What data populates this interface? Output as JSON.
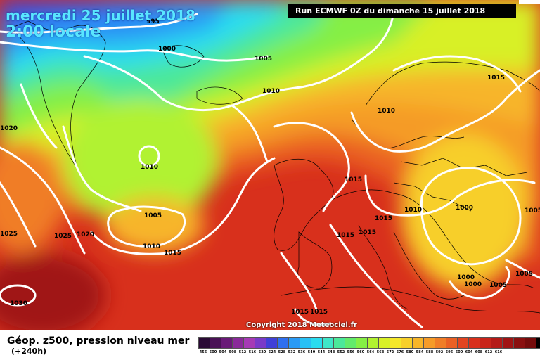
{
  "header": {
    "date": "mercredi 25 juillet 2018",
    "time": "2:00 locale",
    "run": "Run ECMWF 0Z du dimanche 15 juillet 2018"
  },
  "copyright": "Copyright 2018 Meteociel.fr",
  "legend": {
    "title": "Géop. z500, pression niveau mer",
    "subtitle": "(+240h)",
    "colors": [
      "#2a0a35",
      "#4a1256",
      "#6a1a78",
      "#8a2a9a",
      "#a63ab5",
      "#7a3ac8",
      "#4040d8",
      "#2f6ff0",
      "#2a9af5",
      "#28c0f5",
      "#2adcef",
      "#3fe6c8",
      "#4be89a",
      "#62eb6b",
      "#85ef45",
      "#b1f230",
      "#d8f027",
      "#f5e82a",
      "#f7cf2a",
      "#f7b529",
      "#f59b28",
      "#f07d27",
      "#ea6024",
      "#e24420",
      "#d8301c",
      "#c8241a",
      "#b41a17",
      "#a01414",
      "#8a1010",
      "#740c0c",
      "#000000"
    ],
    "ticks": [
      "456",
      "500",
      "504",
      "508",
      "512",
      "516",
      "520",
      "524",
      "528",
      "532",
      "536",
      "540",
      "544",
      "548",
      "552",
      "556",
      "560",
      "564",
      "568",
      "572",
      "576",
      "580",
      "584",
      "588",
      "592",
      "596",
      "600",
      "604",
      "608",
      "612",
      "616"
    ]
  },
  "pressure_labels": [
    "995",
    "1000",
    "1005",
    "1010",
    "1015",
    "1020",
    "1025",
    "1030"
  ],
  "isobar_labels": [
    {
      "text": "995"
    },
    {
      "text": "1000"
    },
    {
      "text": "1005"
    },
    {
      "text": "1010"
    },
    {
      "text": "1010"
    },
    {
      "text": "1015"
    },
    {
      "text": "1020"
    },
    {
      "text": "1010"
    },
    {
      "text": "1005"
    },
    {
      "text": "1010"
    },
    {
      "text": "1015"
    },
    {
      "text": "1025"
    },
    {
      "text": "1020"
    },
    {
      "text": "1025"
    },
    {
      "text": "1030"
    },
    {
      "text": "1015"
    },
    {
      "text": "1015"
    },
    {
      "text": "1010"
    },
    {
      "text": "1015"
    },
    {
      "text": "1015"
    },
    {
      "text": "1000"
    },
    {
      "text": "1005"
    },
    {
      "text": "1000"
    },
    {
      "text": "1000"
    },
    {
      "text": "1005"
    },
    {
      "text": "1015"
    },
    {
      "text": "1015"
    }
  ]
}
